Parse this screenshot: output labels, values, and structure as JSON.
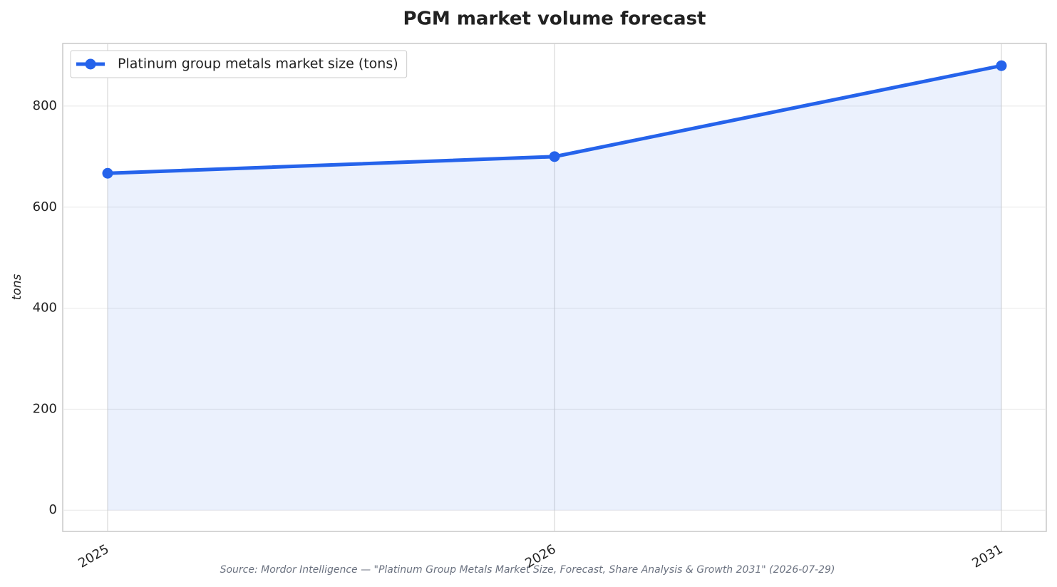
{
  "chart_data": {
    "type": "line",
    "title": "PGM market volume forecast",
    "y_label": "tons",
    "categories": [
      "2025",
      "2026",
      "2031"
    ],
    "series": [
      {
        "name": "Platinum group metals market size (tons)",
        "color": "#2563eb",
        "values": [
          667,
          700,
          880
        ]
      }
    ],
    "ylim": [
      -42,
      924
    ],
    "yticks": [
      0,
      200,
      400,
      600,
      800
    ],
    "grid": true,
    "area_fill": true,
    "legend": "upper left",
    "source": "Source: Mordor Intelligence — \"Platinum Group Metals Market Size, Forecast, Share Analysis & Growth 2031\" (2026-07-29)"
  }
}
